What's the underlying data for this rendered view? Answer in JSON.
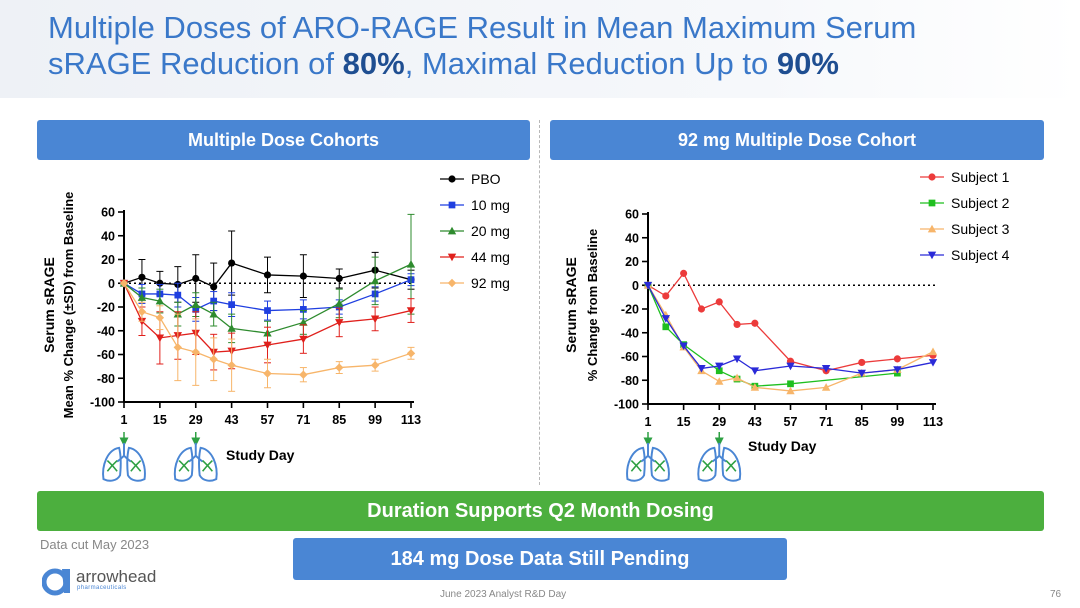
{
  "title": {
    "line1": "Multiple Doses of ARO-RAGE Result in Mean Maximum Serum",
    "line2_prefix": "sRAGE Reduction of ",
    "line2_bold1": "80%",
    "line2_mid": ", Maximal Reduction Up to ",
    "line2_bold2": "90%"
  },
  "panels": {
    "left_header": "Multiple Dose Cohorts",
    "right_header": "92 mg Multiple Dose Cohort"
  },
  "banners": {
    "green": "Duration Supports Q2 Month Dosing",
    "blue": "184 mg Dose Data Still Pending"
  },
  "data_cut": "Data cut May 2023",
  "footer": "June 2023 Analyst R&D Day",
  "page_number": "76",
  "logo": {
    "name": "arrowhead",
    "sub": "pharmaceuticals"
  },
  "colors": {
    "title": "#3a78c9",
    "title_bold": "#1f4e91",
    "panel_header": "#4a86d4",
    "banner_green": "#4caf3e",
    "PBO": "#000000",
    "10mg": "#1f3fe0",
    "20mg": "#2e8b2e",
    "44mg": "#e0201c",
    "92mg": "#f7b56a",
    "subject1": "#ec3b3b",
    "subject2": "#1fbf1f",
    "subject3": "#f7b56a",
    "subject4": "#2a2ad8"
  },
  "chart_data": [
    {
      "type": "line",
      "title": "Multiple Dose Cohorts",
      "xlabel": "Study  Day",
      "ylabel_line1": "Serum sRAGE",
      "ylabel_line2": "Mean % Change (±SD) from Baseline",
      "x_ticks": [
        1,
        15,
        29,
        43,
        57,
        71,
        85,
        99,
        113
      ],
      "ylim": [
        -100,
        60
      ],
      "y_ticks": [
        60,
        40,
        20,
        0,
        -20,
        -40,
        -60,
        -80,
        -100
      ],
      "xlim": [
        1,
        113
      ],
      "dosing_days": [
        1,
        29
      ],
      "legend_position": "top-right",
      "series": [
        {
          "name": "PBO",
          "marker": "circle",
          "x": [
            1,
            8,
            15,
            22,
            29,
            36,
            43,
            57,
            71,
            85,
            99,
            113
          ],
          "y": [
            0,
            5,
            0,
            -1,
            4,
            -3,
            17,
            7,
            6,
            4,
            11,
            3
          ],
          "err": [
            0,
            15,
            10,
            15,
            20,
            20,
            27,
            15,
            18,
            8,
            15,
            8
          ]
        },
        {
          "name": "10 mg",
          "marker": "square",
          "x": [
            1,
            8,
            15,
            22,
            29,
            36,
            43,
            57,
            71,
            85,
            99,
            113
          ],
          "y": [
            0,
            -9,
            -9,
            -10,
            -22,
            -15,
            -18,
            -23,
            -22,
            -20,
            -9,
            3
          ],
          "err": [
            0,
            8,
            8,
            10,
            10,
            8,
            10,
            8,
            8,
            6,
            6,
            5
          ]
        },
        {
          "name": "20 mg",
          "marker": "triangle-up",
          "x": [
            1,
            8,
            15,
            22,
            29,
            36,
            43,
            57,
            71,
            85,
            99,
            113
          ],
          "y": [
            0,
            -12,
            -15,
            -26,
            -18,
            -26,
            -38,
            -42,
            -33,
            -17,
            2,
            16
          ],
          "err": [
            0,
            8,
            10,
            10,
            10,
            10,
            12,
            10,
            10,
            12,
            20,
            42
          ]
        },
        {
          "name": "44 mg",
          "marker": "triangle-down",
          "x": [
            1,
            8,
            15,
            22,
            29,
            36,
            43,
            57,
            71,
            85,
            99,
            113
          ],
          "y": [
            0,
            -32,
            -46,
            -44,
            -42,
            -58,
            -57,
            -52,
            -47,
            -33,
            -30,
            -23
          ],
          "err": [
            0,
            12,
            22,
            20,
            18,
            15,
            15,
            15,
            12,
            12,
            10,
            10
          ]
        },
        {
          "name": "92 mg",
          "marker": "diamond",
          "x": [
            1,
            8,
            15,
            22,
            29,
            36,
            43,
            57,
            71,
            85,
            99,
            113
          ],
          "y": [
            0,
            -24,
            -29,
            -54,
            -58,
            -64,
            -69,
            -76,
            -77,
            -71,
            -69,
            -59
          ],
          "err": [
            0,
            8,
            10,
            28,
            28,
            18,
            22,
            12,
            6,
            5,
            5,
            5
          ]
        }
      ]
    },
    {
      "type": "line",
      "title": "92 mg Multiple Dose Cohort",
      "xlabel": "Study  Day",
      "ylabel_line1": "Serum sRAGE",
      "ylabel_line2": "% Change from Baseline",
      "x_ticks": [
        1,
        15,
        29,
        43,
        57,
        71,
        85,
        99,
        113
      ],
      "ylim": [
        -100,
        60
      ],
      "y_ticks": [
        60,
        40,
        20,
        0,
        -20,
        -40,
        -60,
        -80,
        -100
      ],
      "xlim": [
        1,
        113
      ],
      "dosing_days": [
        1,
        29
      ],
      "legend_position": "top-right",
      "series": [
        {
          "name": "Subject 1",
          "marker": "circle",
          "x": [
            1,
            8,
            15,
            22,
            29,
            36,
            43,
            57,
            71,
            85,
            99,
            113
          ],
          "y": [
            0,
            -9,
            10,
            -20,
            -14,
            -33,
            -32,
            -64,
            -72,
            -65,
            -62,
            -59
          ]
        },
        {
          "name": "Subject 2",
          "marker": "square",
          "x": [
            1,
            8,
            15,
            29,
            36,
            43,
            57,
            99
          ],
          "y": [
            0,
            -35,
            -50,
            -72,
            -79,
            -85,
            -83,
            -74
          ]
        },
        {
          "name": "Subject 3",
          "marker": "triangle-up",
          "x": [
            1,
            8,
            15,
            22,
            29,
            36,
            43,
            57,
            71,
            85,
            99,
            113
          ],
          "y": [
            0,
            -25,
            -52,
            -72,
            -81,
            -78,
            -86,
            -89,
            -86,
            -74,
            -71,
            -56
          ]
        },
        {
          "name": "Subject 4",
          "marker": "triangle-down",
          "x": [
            1,
            8,
            15,
            22,
            29,
            36,
            43,
            57,
            71,
            85,
            99,
            113
          ],
          "y": [
            0,
            -28,
            -51,
            -70,
            -68,
            -62,
            -72,
            -68,
            -70,
            -74,
            -71,
            -65
          ]
        }
      ]
    }
  ]
}
